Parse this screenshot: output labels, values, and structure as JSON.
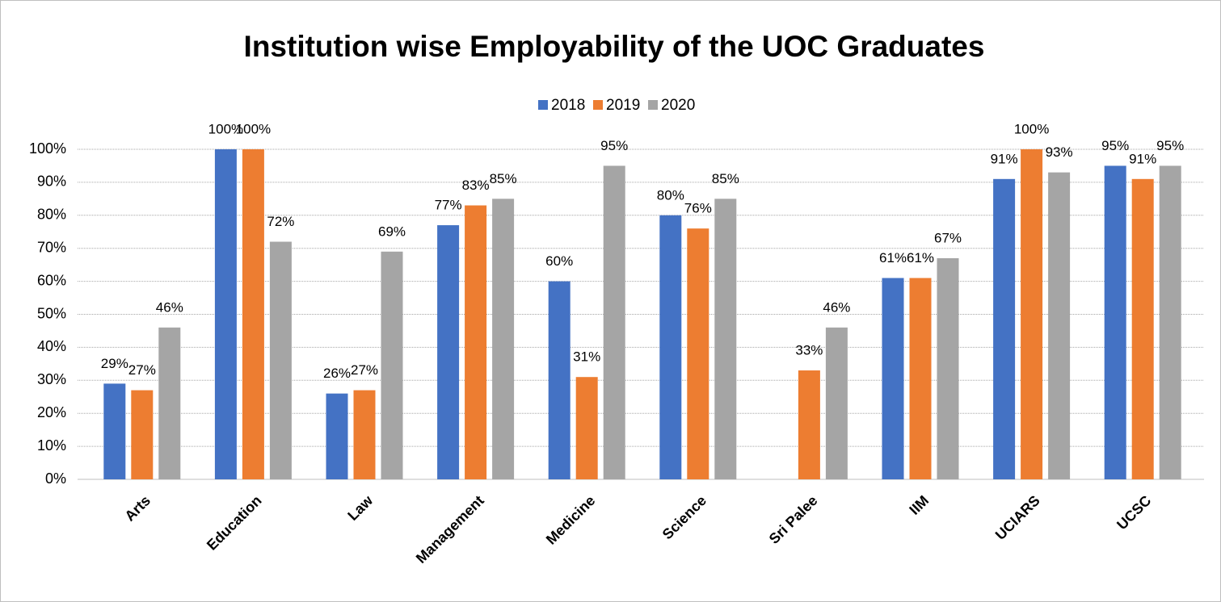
{
  "chart_data": {
    "type": "bar",
    "title": "Institution wise Employability of the UOC Graduates",
    "categories": [
      "Arts",
      "Education",
      "Law",
      "Management",
      "Medicine",
      "Science",
      "Sri Palee",
      "IIM",
      "UCIARS",
      "UCSC"
    ],
    "series": [
      {
        "name": "2018",
        "color": "#4472c4",
        "values": [
          29,
          100,
          26,
          77,
          60,
          80,
          null,
          61,
          91,
          95
        ],
        "value_labels": [
          "29%",
          "100%",
          "26%",
          "77%",
          "60%",
          "80%",
          null,
          "61%",
          "91%",
          "95%"
        ]
      },
      {
        "name": "2019",
        "color": "#ed7d31",
        "values": [
          27,
          100,
          27,
          83,
          31,
          76,
          33,
          61,
          100,
          91
        ],
        "value_labels": [
          "27%",
          "100%",
          "27%",
          "83%",
          "31%",
          "76%",
          "33%",
          "61%",
          "100%",
          "91%"
        ]
      },
      {
        "name": "2020",
        "color": "#a5a5a5",
        "values": [
          46,
          72,
          69,
          85,
          95,
          85,
          46,
          67,
          93,
          95
        ],
        "value_labels": [
          "46%",
          "72%",
          "69%",
          "85%",
          "95%",
          "85%",
          "46%",
          "67%",
          "93%",
          "95%"
        ]
      }
    ],
    "ylim": [
      0,
      100
    ],
    "yticks": [
      {
        "value": 0,
        "label": "0%"
      },
      {
        "value": 10,
        "label": "10%"
      },
      {
        "value": 20,
        "label": "20%"
      },
      {
        "value": 30,
        "label": "30%"
      },
      {
        "value": 40,
        "label": "40%"
      },
      {
        "value": 50,
        "label": "50%"
      },
      {
        "value": 60,
        "label": "60%"
      },
      {
        "value": 70,
        "label": "70%"
      },
      {
        "value": 80,
        "label": "80%"
      },
      {
        "value": 90,
        "label": "90%"
      },
      {
        "value": 100,
        "label": "100%"
      }
    ],
    "grid": true,
    "legend": "top"
  }
}
